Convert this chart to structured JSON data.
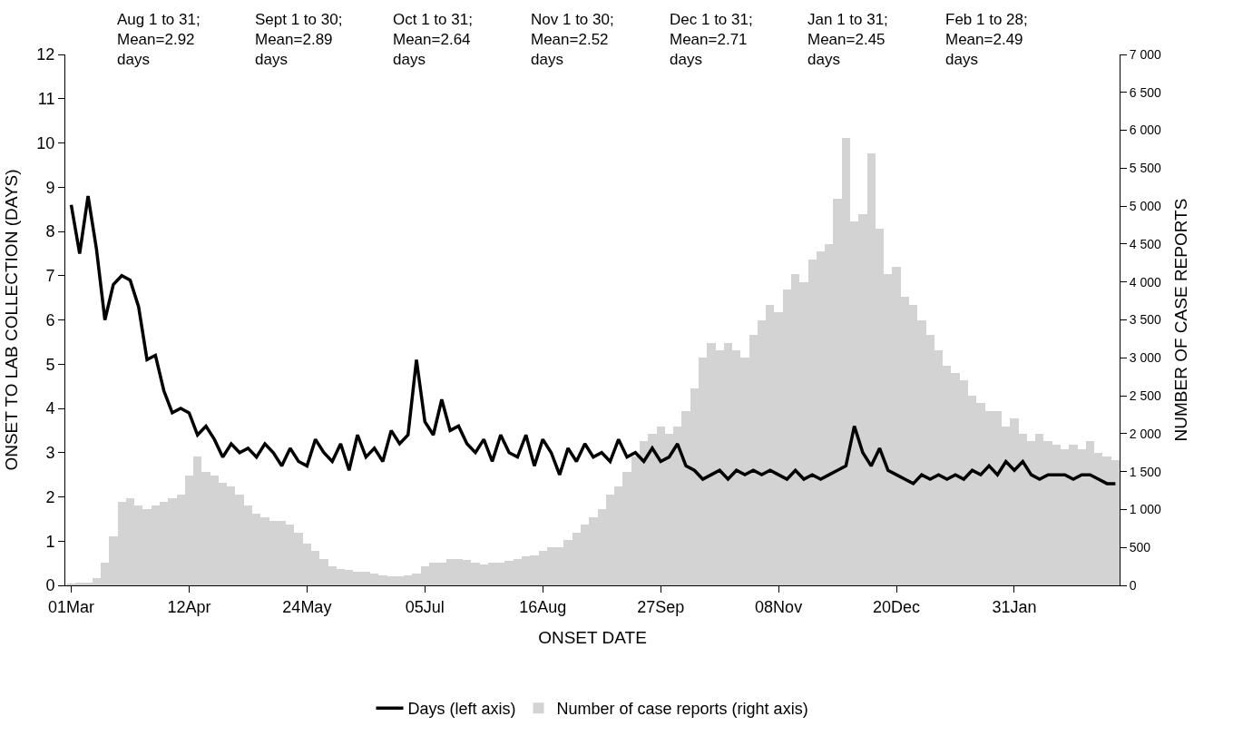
{
  "chart_data": {
    "type": "bar",
    "categories": [
      "01Mar",
      null,
      null,
      null,
      null,
      null,
      null,
      null,
      null,
      null,
      null,
      null,
      null,
      null,
      "12Apr",
      null,
      null,
      null,
      null,
      null,
      null,
      null,
      null,
      null,
      null,
      null,
      null,
      null,
      "24May",
      null,
      null,
      null,
      null,
      null,
      null,
      null,
      null,
      null,
      null,
      null,
      null,
      null,
      "05Jul",
      null,
      null,
      null,
      null,
      null,
      null,
      null,
      null,
      null,
      null,
      null,
      null,
      null,
      "16Aug",
      null,
      null,
      null,
      null,
      null,
      null,
      null,
      null,
      null,
      null,
      null,
      null,
      null,
      "27Sep",
      null,
      null,
      null,
      null,
      null,
      null,
      null,
      null,
      null,
      null,
      null,
      null,
      null,
      "08Nov",
      null,
      null,
      null,
      null,
      null,
      null,
      null,
      null,
      null,
      null,
      null,
      null,
      null,
      "20Dec",
      null,
      null,
      null,
      null,
      null,
      null,
      null,
      null,
      null,
      null,
      null,
      null,
      null,
      "31Jan",
      null,
      null,
      null,
      null,
      null,
      null,
      null,
      null,
      null,
      null,
      null,
      null
    ],
    "series": [
      {
        "name": "Days (left axis)",
        "type": "line",
        "axis": "y",
        "color": "#000000",
        "values": [
          8.6,
          7.5,
          8.8,
          7.6,
          6.0,
          6.8,
          7.0,
          6.9,
          6.3,
          5.1,
          5.2,
          4.4,
          3.9,
          4.0,
          3.9,
          3.4,
          3.6,
          3.3,
          2.9,
          3.2,
          3.0,
          3.1,
          2.9,
          3.2,
          3.0,
          2.7,
          3.1,
          2.8,
          2.7,
          3.3,
          3.0,
          2.8,
          3.2,
          2.6,
          3.4,
          2.9,
          3.1,
          2.8,
          3.5,
          3.2,
          3.4,
          5.1,
          3.7,
          3.4,
          4.2,
          3.5,
          3.6,
          3.2,
          3.0,
          3.3,
          2.8,
          3.4,
          3.0,
          2.9,
          3.4,
          2.7,
          3.3,
          3.0,
          2.5,
          3.1,
          2.8,
          3.2,
          2.9,
          3.0,
          2.8,
          3.3,
          2.9,
          3.0,
          2.8,
          3.1,
          2.8,
          2.9,
          3.2,
          2.7,
          2.6,
          2.4,
          2.5,
          2.6,
          2.4,
          2.6,
          2.5,
          2.6,
          2.5,
          2.6,
          2.5,
          2.4,
          2.6,
          2.4,
          2.5,
          2.4,
          2.5,
          2.6,
          2.7,
          3.6,
          3.0,
          2.7,
          3.1,
          2.6,
          2.5,
          2.4,
          2.3,
          2.5,
          2.4,
          2.5,
          2.4,
          2.5,
          2.4,
          2.6,
          2.5,
          2.7,
          2.5,
          2.8,
          2.6,
          2.8,
          2.5,
          2.4,
          2.5,
          2.5,
          2.5,
          2.4,
          2.5,
          2.5,
          2.4,
          2.3,
          2.3
        ]
      },
      {
        "name": "Number of case reports (right axis)",
        "axis": "y2",
        "color": "#d3d3d3",
        "values": [
          20,
          30,
          40,
          100,
          300,
          650,
          1100,
          1150,
          1050,
          1000,
          1050,
          1100,
          1150,
          1200,
          1450,
          1700,
          1500,
          1450,
          1350,
          1300,
          1200,
          1050,
          950,
          900,
          850,
          850,
          800,
          700,
          550,
          450,
          350,
          250,
          220,
          200,
          180,
          180,
          150,
          130,
          120,
          120,
          130,
          150,
          250,
          300,
          300,
          350,
          350,
          330,
          300,
          280,
          300,
          300,
          320,
          350,
          380,
          400,
          450,
          500,
          500,
          600,
          700,
          800,
          900,
          1000,
          1200,
          1300,
          1500,
          1700,
          1900,
          2000,
          2100,
          2000,
          2100,
          2300,
          2600,
          3000,
          3200,
          3100,
          3200,
          3100,
          3000,
          3300,
          3500,
          3700,
          3600,
          3900,
          4100,
          4000,
          4300,
          4400,
          4500,
          5100,
          5900,
          4800,
          4900,
          5700,
          4700,
          4100,
          4200,
          3800,
          3700,
          3500,
          3300,
          3100,
          2900,
          2800,
          2700,
          2500,
          2400,
          2300,
          2300,
          2100,
          2200,
          2000,
          1900,
          2000,
          1900,
          1850,
          1800,
          1850,
          1800,
          1900,
          1750,
          1700,
          1650
        ]
      }
    ],
    "xlabel": "ONSET DATE",
    "ylabel": "ONSET TO LAB COLLECTION (DAYS)",
    "y2label": "NUMBER OF CASE REPORTS",
    "ylim": [
      0,
      12
    ],
    "yticks": [
      0,
      1,
      2,
      3,
      4,
      5,
      6,
      7,
      8,
      9,
      10,
      11,
      12
    ],
    "y2lim": [
      0,
      7000
    ],
    "y2ticks": [
      0,
      500,
      {
        "value": 1000,
        "label": "1 000"
      },
      {
        "value": 1500,
        "label": "1 500"
      },
      {
        "value": 2000,
        "label": "2 000"
      },
      {
        "value": 2500,
        "label": "2 500"
      },
      {
        "value": 3000,
        "label": "3 000"
      },
      {
        "value": 3500,
        "label": "3 500"
      },
      {
        "value": 4000,
        "label": "4 000"
      },
      {
        "value": 4500,
        "label": "4 500"
      },
      {
        "value": 5000,
        "label": "5 000"
      },
      {
        "value": 5500,
        "label": "5 500"
      },
      {
        "value": 6000,
        "label": "6 000"
      },
      {
        "value": 6500,
        "label": "6 500"
      },
      {
        "value": 7000,
        "label": "7 000"
      }
    ],
    "annotations": [
      "Aug 1 to 31;\nMean=2.92\ndays",
      "Sept 1 to 30;\nMean=2.89\ndays",
      "Oct 1 to 31;\nMean=2.64\ndays",
      "Nov 1 to 30;\nMean=2.52\ndays",
      "Dec 1 to 31;\nMean=2.71\ndays",
      "Jan 1 to 31;\nMean=2.45\ndays",
      "Feb 1 to 28;\nMean=2.49\ndays"
    ],
    "legend": "bottom",
    "marker": "none",
    "line_style": "solid"
  }
}
